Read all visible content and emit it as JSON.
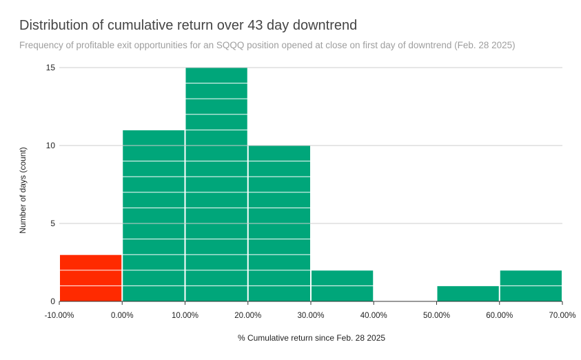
{
  "chart_data": {
    "type": "bar",
    "subtype": "histogram",
    "title": "Distribution of cumulative return over 43 day downtrend",
    "subtitle": "Frequency of profitable exit opportunities for an SQQQ position opened at close on first day of downtrend (Feb. 28 2025)",
    "xlabel": "% Cumulative return since Feb. 28 2025",
    "ylabel": "Number of days (count)",
    "x_ticks": [
      "-10.00%",
      "0.00%",
      "10.00%",
      "20.00%",
      "30.00%",
      "40.00%",
      "50.00%",
      "60.00%",
      "70.00%"
    ],
    "y_ticks": [
      0,
      5,
      10,
      15
    ],
    "ylim": [
      0,
      15
    ],
    "xlim": [
      -10,
      70
    ],
    "bins": [
      {
        "from": -10,
        "to": 0,
        "count": 3
      },
      {
        "from": 0,
        "to": 10,
        "count": 11
      },
      {
        "from": 10,
        "to": 20,
        "count": 15
      },
      {
        "from": 20,
        "to": 30,
        "count": 10
      },
      {
        "from": 30,
        "to": 40,
        "count": 2
      },
      {
        "from": 40,
        "to": 50,
        "count": 0
      },
      {
        "from": 50,
        "to": 60,
        "count": 1
      },
      {
        "from": 60,
        "to": 70,
        "count": 2
      }
    ],
    "colors": {
      "negative": "#ff2a00",
      "positive": "#00a67a",
      "grid": "#cccccc",
      "axis": "#333333"
    },
    "grid": true,
    "legend": "none"
  }
}
